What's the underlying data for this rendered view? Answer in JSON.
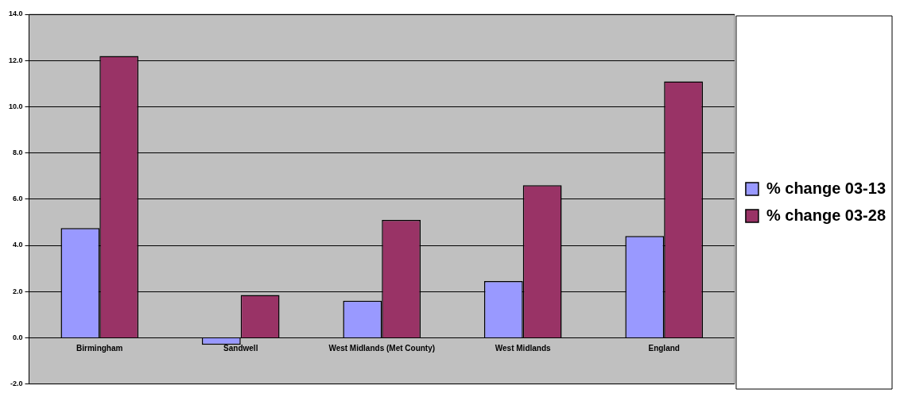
{
  "chart_data": {
    "type": "bar",
    "categories": [
      "Birmingham",
      "Sandwell",
      "West Midlands (Met County)",
      "West Midlands",
      "England"
    ],
    "series": [
      {
        "name": "% change 03-13",
        "color": "#9999ff",
        "values": [
          4.75,
          -0.3,
          1.6,
          2.45,
          4.4
        ]
      },
      {
        "name": "% change 03-28",
        "color": "#993366",
        "values": [
          12.2,
          1.85,
          5.1,
          6.6,
          11.1
        ]
      }
    ],
    "ylim": [
      -2,
      14
    ],
    "yticks": [
      {
        "value": -2,
        "label": "-2.0"
      },
      {
        "value": 0,
        "label": "0.0"
      },
      {
        "value": 2,
        "label": "2.0"
      },
      {
        "value": 4,
        "label": "4.0"
      },
      {
        "value": 6,
        "label": "6.0"
      },
      {
        "value": 8,
        "label": "8.0"
      },
      {
        "value": 10,
        "label": "10.0"
      },
      {
        "value": 12,
        "label": "12.0"
      },
      {
        "value": 14,
        "label": "14.0"
      }
    ],
    "grid": "y",
    "legend": "right"
  }
}
